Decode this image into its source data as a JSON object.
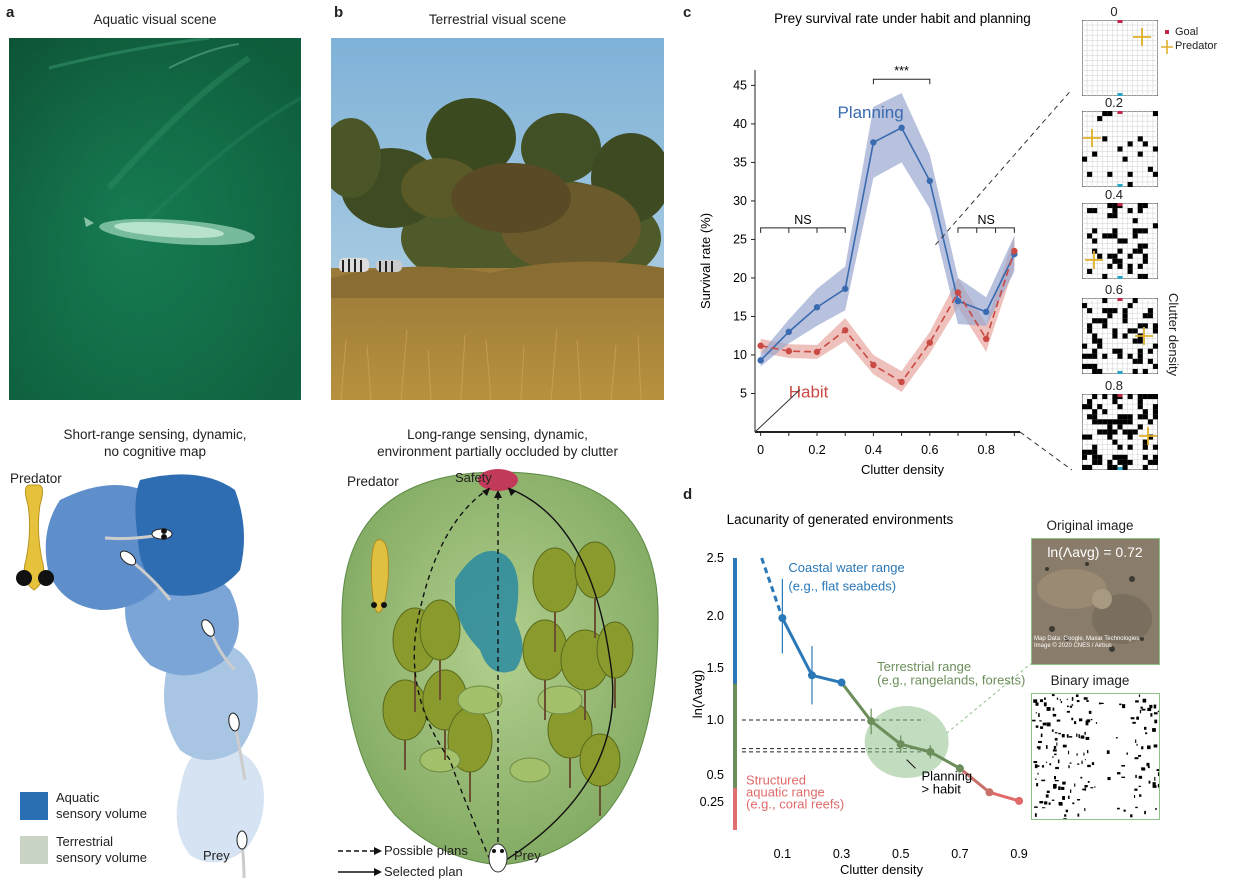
{
  "panel_a": {
    "label": "a",
    "photo_title": "Aquatic visual scene",
    "caption_line1": "Short-range sensing, dynamic,",
    "caption_line2": "no cognitive map",
    "predator_label": "Predator",
    "prey_label": "Prey",
    "legend": [
      {
        "color": "#2a6fb3",
        "line1": "Aquatic",
        "line2": "sensory volume"
      },
      {
        "color": "#c9d4c4",
        "line1": "Terrestrial",
        "line2": "sensory volume"
      }
    ]
  },
  "panel_b": {
    "label": "b",
    "photo_title": "Terrestrial visual scene",
    "caption_line1": "Long-range sensing, dynamic,",
    "caption_line2": "environment partially occluded by clutter",
    "safety_label": "Safety",
    "predator_label": "Predator",
    "prey_label": "Prey",
    "legend_possible": "Possible plans",
    "legend_selected": "Selected plan"
  },
  "panel_c": {
    "label": "c",
    "grid_labels": [
      "0",
      "0.2",
      "0.4",
      "0.6",
      "0.8"
    ],
    "grid_legend_goal": "Goal",
    "grid_legend_predator": "Predator",
    "grid_axis_label": "Clutter density"
  },
  "panel_d": {
    "label": "d",
    "original_image_title": "Original image",
    "original_image_value": "ln(Λavg) = 0.72",
    "original_image_credit_line1": "Map Data: Google, Maxar Technologies",
    "original_image_credit_line2": "Image © 2020 CNES / Airbus",
    "binary_image_title": "Binary image"
  },
  "chart_data": [
    {
      "type": "line",
      "title": "Prey survival rate under habit and planning",
      "xlabel": "Clutter density",
      "ylabel": "Survival rate (%)",
      "xlim": [
        -0.02,
        0.92
      ],
      "ylim": [
        0,
        47
      ],
      "xticks": [
        0,
        0.2,
        0.4,
        0.6,
        0.8
      ],
      "yticks": [
        5,
        10,
        15,
        20,
        25,
        30,
        35,
        40,
        45
      ],
      "x": [
        0,
        0.1,
        0.2,
        0.3,
        0.4,
        0.5,
        0.6,
        0.7,
        0.8,
        0.9
      ],
      "series": [
        {
          "name": "Planning",
          "color": "#3a6bb0",
          "band": "#9aa6cf",
          "values": [
            9.3,
            13.0,
            16.2,
            18.6,
            37.6,
            39.5,
            32.6,
            17.0,
            15.6,
            23.1
          ],
          "lower": [
            8.5,
            11.5,
            13.8,
            15.8,
            33.0,
            35.0,
            29.0,
            14.0,
            13.8,
            20.8
          ],
          "upper": [
            10.2,
            14.6,
            18.6,
            21.5,
            42.2,
            44.0,
            36.0,
            20.0,
            17.5,
            25.5
          ]
        },
        {
          "name": "Habit",
          "color": "#c94a44",
          "band": "#e8a7a0",
          "values": [
            11.2,
            10.5,
            10.4,
            13.2,
            8.7,
            6.5,
            11.6,
            18.1,
            12.1,
            23.5
          ],
          "lower": [
            10.3,
            9.6,
            9.5,
            11.8,
            7.5,
            5.2,
            10.2,
            16.2,
            10.4,
            21.5
          ],
          "upper": [
            12.1,
            11.4,
            11.3,
            14.8,
            10.0,
            7.9,
            13.0,
            20.0,
            14.0,
            25.5
          ]
        }
      ],
      "annotations": [
        {
          "text": "NS",
          "x_from": 0,
          "x_to": 0.3,
          "y": 26.5
        },
        {
          "text": "***",
          "x_from": 0.4,
          "x_to": 0.6,
          "y": 45.8
        },
        {
          "text": "NS",
          "x_from": 0.7,
          "x_to": 0.9,
          "y": 26.5
        }
      ]
    },
    {
      "type": "line",
      "title": "Lacunarity of generated environments",
      "xlabel": "Clutter density",
      "ylabel": "ln(Λavg)",
      "xlim": [
        -0.05,
        0.92
      ],
      "ylim": [
        0.0,
        2.5
      ],
      "xticks": [
        0.1,
        0.3,
        0.5,
        0.7,
        0.9
      ],
      "yticks": [
        0.25,
        0.5,
        1.0,
        1.5,
        2.0,
        2.5
      ],
      "x": [
        0.1,
        0.2,
        0.3,
        0.4,
        0.5,
        0.6,
        0.7,
        0.8,
        0.9
      ],
      "values": [
        1.98,
        1.43,
        1.36,
        0.99,
        0.78,
        0.71,
        0.56,
        0.34,
        0.26
      ],
      "errors": [
        0.34,
        0.28,
        0.02,
        0.12,
        0.08,
        0.06,
        0.04,
        0.03,
        0.02
      ],
      "colors": [
        "#2a78b8",
        "#2a78b8",
        "#2a78b8",
        "#6b8e5a",
        "#6b8e5a",
        "#6b8e5a",
        "#6b8e5a",
        "#c9706a",
        "#e06a6a"
      ],
      "dashed_extension": {
        "x": [
          0.03,
          0.1
        ],
        "y": [
          2.5,
          1.98
        ]
      },
      "reference_lines": [
        1.0,
        0.74,
        0.71
      ],
      "ranges": [
        {
          "text_line1": "Coastal water range",
          "text_line2": "(e.g., flat seabeds)",
          "color": "#2a78b8",
          "y_from": 1.2,
          "y_to": 2.5
        },
        {
          "text_line1": "Terrestrial range",
          "text_line2": "(e.g., rangelands, forests)",
          "color": "#6b8e5a",
          "y_from": 0.38,
          "y_to": 1.35
        },
        {
          "text_line1": "Structured",
          "text_line2": "aquatic range",
          "text_line3": "(e.g., coral reefs)",
          "color": "#e07070",
          "y_from": 0.0,
          "y_to": 0.38
        }
      ],
      "annotation": {
        "line1": "Planning",
        "line2": "> habit"
      }
    }
  ]
}
